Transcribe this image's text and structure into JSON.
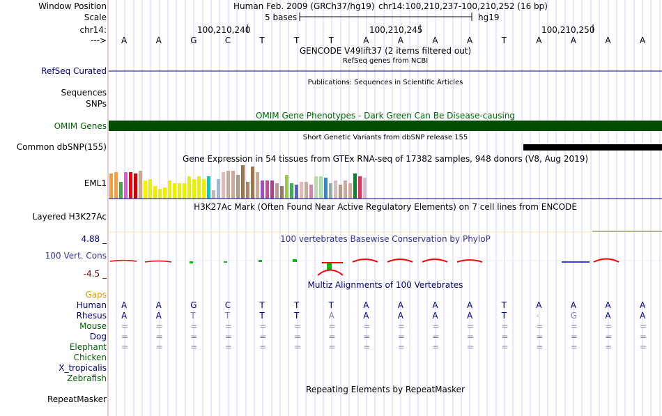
{
  "labels": {
    "window_position": "Window Position",
    "scale": "Scale",
    "chrom": "chr14:",
    "strand": "--->",
    "refseq": "RefSeq Curated",
    "sequences": "Sequences",
    "snps": "SNPs",
    "omim": "OMIM Genes",
    "dbsnp": "Common dbSNP(155)",
    "gtex": "EML1",
    "h3k27ac": "Layered H3K27Ac",
    "phylop_max": "4.88 _",
    "phylop": "100 Vert. Cons",
    "phylop_min": "-4.5 _",
    "gaps": "Gaps",
    "human": "Human",
    "rhesus": "Rhesus",
    "mouse": "Mouse",
    "dog": "Dog",
    "elephant": "Elephant",
    "chicken": "Chicken",
    "xtrop": "X_tropicalis",
    "zebrafish": "Zebrafish",
    "repeatmasker": "RepeatMasker"
  },
  "header": {
    "assembly": "Human Feb. 2009 (GRCh37/hg19)",
    "position": "chr14:100,210,237-100,210,252 (16 bp)",
    "scale_text": "5 bases",
    "scale_db": "hg19",
    "coord_1": "100,210,240",
    "coord_2": "100,210,245",
    "coord_3": "100,210,250"
  },
  "tracks": {
    "gencode": "GENCODE V49lift37 (2 items filtered out)",
    "refseq_sub": "RefSeq genes from NCBI",
    "publications": "Publications: Sequences in Scientific Articles",
    "omim_title": "OMIM Gene Phenotypes - Dark Green Can Be Disease-causing",
    "dbsnp_title": "Short Genetic Variants from dbSNP release 155",
    "gtex_title": "Gene Expression in 54 tissues from GTEx RNA-seq of 17382 samples, 948 donors (V8, Aug 2019)",
    "h3k27ac_title": "H3K27Ac Mark (Often Found Near Active Regulatory Elements) on 7 cell lines from ENCODE",
    "phylop_title": "100 vertebrates Basewise Conservation by PhyloP",
    "multiz_title": "Multiz Alignments of 100 Vertebrates",
    "repeat_title": "Repeating Elements by RepeatMasker"
  },
  "sequence": {
    "bases": [
      "A",
      "A",
      "G",
      "C",
      "T",
      "T",
      "T",
      "A",
      "A",
      "A",
      "A",
      "T",
      "A",
      "A",
      "A",
      "A"
    ],
    "rhesus": [
      "A",
      "A",
      "T",
      "T",
      "T",
      "T",
      "A",
      "A",
      "A",
      "A",
      "A",
      "T",
      "-",
      "G",
      "A",
      "A"
    ],
    "mouse": [
      "=",
      "=",
      "=",
      "=",
      "=",
      "=",
      "=",
      "=",
      "=",
      "=",
      "=",
      "=",
      "=",
      "=",
      "=",
      "="
    ],
    "dog": [
      "=",
      "=",
      "=",
      "=",
      "=",
      "=",
      "=",
      "=",
      "=",
      "=",
      "=",
      "=",
      "=",
      "=",
      "=",
      "="
    ],
    "elephant": [
      "=",
      "=",
      "=",
      "=",
      "=",
      "=",
      "=",
      "=",
      "=",
      "=",
      "=",
      "=",
      "=",
      "=",
      "=",
      "="
    ]
  },
  "colors": {
    "label_blue": "#000080",
    "label_green": "#006400",
    "gaps_orange": "#e69500",
    "omim_green": "#004d00",
    "phylop_red": "#ff0000",
    "phylop_green": "#00c000",
    "grid": "#d2d2ff",
    "divider": "#cc9999"
  }
}
